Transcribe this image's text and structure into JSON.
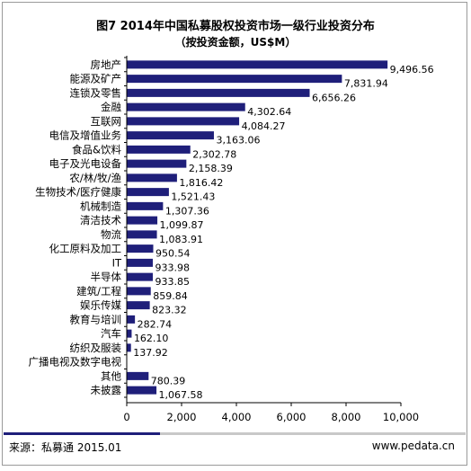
{
  "chart_data": {
    "type": "bar",
    "orientation": "horizontal",
    "title": "图7 2014年中国私募股权投资市场一级行业投资分布",
    "subtitle": "（按投资金额，US$M）",
    "categories": [
      "房地产",
      "能源及矿产",
      "连锁及零售",
      "金融",
      "互联网",
      "电信及增值业务",
      "食品&饮料",
      "电子及光电设备",
      "农/林/牧/渔",
      "生物技术/医疗健康",
      "机械制造",
      "清洁技术",
      "物流",
      "化工原料及加工",
      "IT",
      "半导体",
      "建筑/工程",
      "娱乐传媒",
      "教育与培训",
      "汽车",
      "纺织及服装",
      "广播电视及数字电视",
      "其他",
      "未披露"
    ],
    "values": [
      9496.56,
      7831.94,
      6656.26,
      4302.64,
      4084.27,
      3163.06,
      2302.78,
      2158.39,
      1816.42,
      1521.43,
      1307.36,
      1099.87,
      1083.91,
      950.54,
      933.98,
      933.85,
      859.84,
      823.32,
      282.74,
      162.1,
      137.92,
      null,
      780.39,
      1067.58
    ],
    "value_labels": [
      "9,496.56",
      "7,831.94",
      "6,656.26",
      "4,302.64",
      "4,084.27",
      "3,163.06",
      "2,302.78",
      "2,158.39",
      "1,816.42",
      "1,521.43",
      "1,307.36",
      "1,099.87",
      "1,083.91",
      "950.54",
      "933.98",
      "933.85",
      "859.84",
      "823.32",
      "282.74",
      "162.10",
      "137.92",
      "",
      "780.39",
      "1,067.58"
    ],
    "xlim": [
      0,
      10000
    ],
    "x_ticks": [
      "0",
      "2,000",
      "4,000",
      "6,000",
      "8,000",
      "10,000"
    ],
    "bar_color": "#1f1f7a",
    "grid": false
  },
  "footer": {
    "source": "来源：私募通  2015.01",
    "website": "www.pedata.cn"
  }
}
